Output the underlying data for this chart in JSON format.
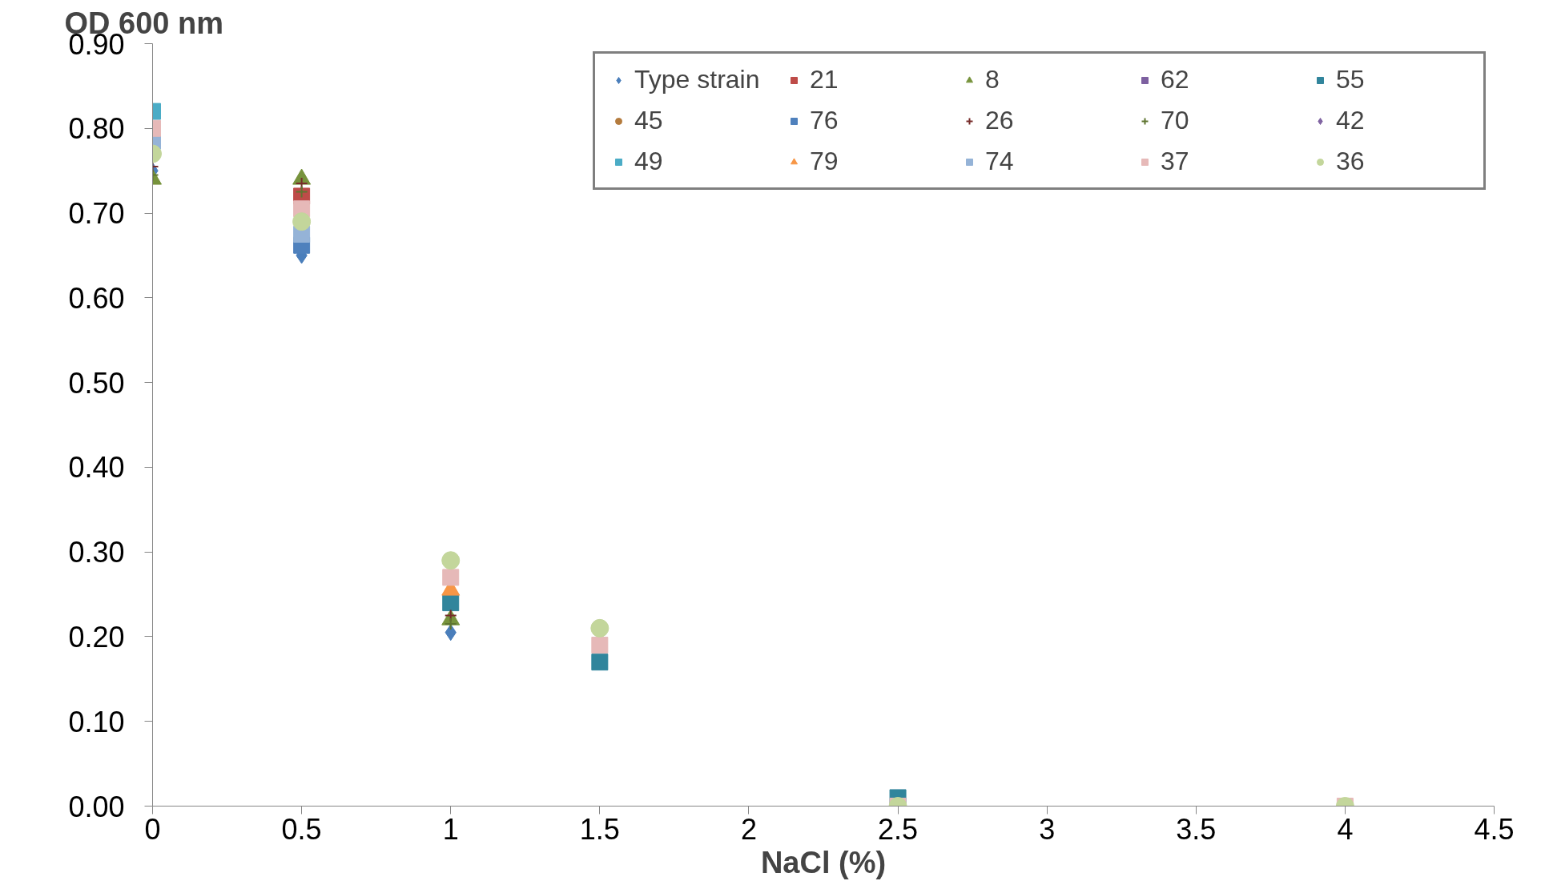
{
  "chart_data": {
    "type": "scatter",
    "ylabel": "OD 600 nm",
    "xlabel": "NaCl (%)",
    "x": [
      0,
      0.5,
      1,
      1.5,
      2.5,
      4
    ],
    "xlim": [
      0,
      4.5
    ],
    "xticks": [
      0,
      0.5,
      1,
      1.5,
      2,
      2.5,
      3,
      3.5,
      4,
      4.5
    ],
    "ylim": [
      0,
      0.9
    ],
    "yticks": [
      {
        "value": 0,
        "label": "0.00"
      },
      {
        "value": 0.1,
        "label": "0.10"
      },
      {
        "value": 0.2,
        "label": "0.20"
      },
      {
        "value": 0.3,
        "label": "0.30"
      },
      {
        "value": 0.4,
        "label": "0.40"
      },
      {
        "value": 0.5,
        "label": "0.50"
      },
      {
        "value": 0.6,
        "label": "0.60"
      },
      {
        "value": 0.7,
        "label": "0.70"
      },
      {
        "value": 0.8,
        "label": "0.80"
      },
      {
        "value": 0.9,
        "label": "0.90"
      }
    ],
    "grid": false,
    "legend": "top right",
    "series": [
      {
        "name": "Type strain",
        "color": "#4a7ebb",
        "marker": "diamond",
        "values": [
          0.75,
          0.65,
          0.205,
          null,
          null,
          null
        ]
      },
      {
        "name": "21",
        "color": "#be4b48",
        "marker": "square",
        "values": [
          null,
          0.72,
          null,
          null,
          null,
          null
        ]
      },
      {
        "name": "8",
        "color": "#77933c",
        "marker": "triangle",
        "values": [
          0.74,
          0.74,
          0.22,
          null,
          null,
          null
        ]
      },
      {
        "name": "62",
        "color": "#7d60a0",
        "marker": "square",
        "values": [
          null,
          null,
          null,
          null,
          null,
          null
        ]
      },
      {
        "name": "55",
        "color": "#31859c",
        "marker": "square",
        "values": [
          null,
          null,
          0.24,
          0.17,
          0.01,
          null
        ]
      },
      {
        "name": "45",
        "color": "#b47b3d",
        "marker": "circle",
        "values": [
          null,
          null,
          null,
          null,
          null,
          null
        ]
      },
      {
        "name": "76",
        "color": "#4f81bd",
        "marker": "square",
        "values": [
          null,
          0.662,
          null,
          null,
          null,
          null
        ]
      },
      {
        "name": "26",
        "color": "#772c2a",
        "marker": "cross",
        "values": [
          0.755,
          0.735,
          0.225,
          null,
          null,
          null
        ]
      },
      {
        "name": "70",
        "color": "#5f7530",
        "marker": "cross",
        "values": [
          0.745,
          0.725,
          0.215,
          null,
          null,
          null
        ]
      },
      {
        "name": "42",
        "color": "#8064a2",
        "marker": "diamond",
        "values": [
          null,
          null,
          null,
          null,
          null,
          null
        ]
      },
      {
        "name": "49",
        "color": "#4bacc6",
        "marker": "square",
        "values": [
          0.82,
          null,
          null,
          null,
          null,
          null
        ]
      },
      {
        "name": "79",
        "color": "#f79646",
        "marker": "triangle",
        "values": [
          null,
          null,
          0.255,
          null,
          null,
          null
        ]
      },
      {
        "name": "74",
        "color": "#95b3d7",
        "marker": "square",
        "values": [
          0.785,
          0.675,
          null,
          null,
          null,
          null
        ]
      },
      {
        "name": "37",
        "color": "#e6b9b8",
        "marker": "square",
        "values": [
          0.8,
          0.705,
          0.27,
          0.19,
          0.0,
          0.0
        ]
      },
      {
        "name": "36",
        "color": "#c3d69b",
        "marker": "circle",
        "values": [
          0.77,
          0.69,
          0.29,
          0.21,
          0.0,
          0.0
        ]
      }
    ]
  }
}
